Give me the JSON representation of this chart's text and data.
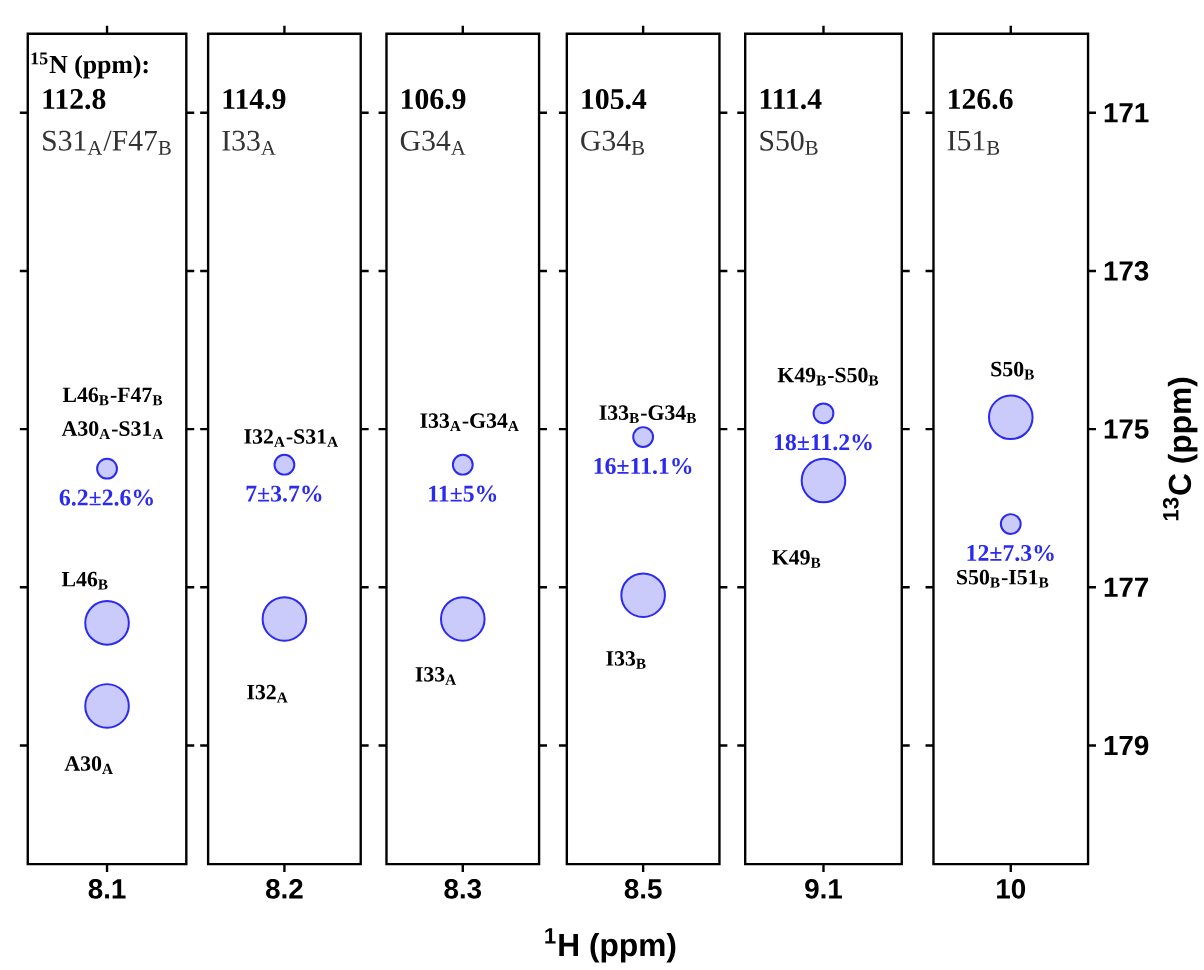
{
  "chart_data": [
    {
      "type": "scatter",
      "title": "112.8",
      "subtitle": "S31$_{A}$/F47$_{B}$",
      "categories": [
        "8.1"
      ],
      "ylim": [
        180.5,
        170
      ],
      "yticks": [
        171,
        173,
        175,
        177,
        179
      ],
      "tick_labels": "x",
      "marker": "circle",
      "series": [
        {
          "color": "#2b2bf0",
          "x": [
            "8.1",
            "8.1"
          ],
          "values": [
            177.45,
            178.5
          ]
        },
        {
          "color": "#2b2bf0",
          "x": [
            "8.1"
          ],
          "values": [
            175.5
          ],
          "value_labels": [
            "6.2±2.6%"
          ]
        }
      ],
      "annotations": [
        "$^{15}$N (ppm):",
        "L46$_{B}$-F47$_{B}$",
        "A30$_{A}$-S31$_{A}$",
        "L46$_{B}$",
        "A30$_{A}$"
      ]
    },
    {
      "type": "scatter",
      "title": "114.9",
      "subtitle": "I33$_{A}$",
      "categories": [
        "8.2"
      ],
      "ylim": [
        180.5,
        170
      ],
      "yticks": [
        171,
        173,
        175,
        177,
        179
      ],
      "tick_labels": "x",
      "marker": "circle",
      "series": [
        {
          "color": "#2b2bf0",
          "x": [
            "8.2"
          ],
          "values": [
            177.4
          ]
        },
        {
          "color": "#2b2bf0",
          "x": [
            "8.2"
          ],
          "values": [
            175.45
          ],
          "value_labels": [
            "7±3.7%"
          ]
        }
      ],
      "annotations": [
        "I32$_{A}$-S31$_{A}$",
        "I32$_{A}$"
      ]
    },
    {
      "type": "scatter",
      "title": "106.9",
      "subtitle": "G34$_{A}$",
      "categories": [
        "8.3"
      ],
      "ylim": [
        180.5,
        170
      ],
      "yticks": [
        171,
        173,
        175,
        177,
        179
      ],
      "tick_labels": "x",
      "marker": "circle",
      "series": [
        {
          "color": "#2b2bf0",
          "x": [
            "8.3"
          ],
          "values": [
            177.4
          ]
        },
        {
          "color": "#2b2bf0",
          "x": [
            "8.3"
          ],
          "values": [
            175.45
          ],
          "value_labels": [
            "11±5%"
          ]
        }
      ],
      "annotations": [
        "I33$_{A}$-G34$_{A}$",
        "I33$_{A}$"
      ]
    },
    {
      "type": "scatter",
      "title": "105.4",
      "subtitle": "G34$_{B}$",
      "xlabel": "$^{1}$H  (ppm)",
      "categories": [
        "8.5"
      ],
      "ylim": [
        180.5,
        170
      ],
      "yticks": [
        171,
        173,
        175,
        177,
        179
      ],
      "tick_labels": "x",
      "marker": "circle",
      "series": [
        {
          "color": "#2b2bf0",
          "x": [
            "8.5"
          ],
          "values": [
            177.1
          ]
        },
        {
          "color": "#2b2bf0",
          "x": [
            "8.5"
          ],
          "values": [
            175.1
          ],
          "value_labels": [
            "16±11.1%"
          ]
        }
      ],
      "annotations": [
        "I33$_{B}$-G34$_{B}$",
        "I33$_{B}$"
      ]
    },
    {
      "type": "scatter",
      "title": "111.4",
      "subtitle": "S50$_{B}$",
      "categories": [
        "9.1"
      ],
      "ylim": [
        180.5,
        170
      ],
      "yticks": [
        171,
        173,
        175,
        177,
        179
      ],
      "tick_labels": "x",
      "marker": "circle",
      "series": [
        {
          "color": "#2b2bf0",
          "x": [
            "9.1"
          ],
          "values": [
            175.65
          ]
        },
        {
          "color": "#2b2bf0",
          "x": [
            "9.1"
          ],
          "values": [
            174.8
          ],
          "value_labels": [
            "18±11.2%"
          ]
        }
      ],
      "annotations": [
        "K49$_{B}$-S50$_{B}$",
        "K49$_{B}$"
      ]
    },
    {
      "type": "scatter",
      "title": "126.6",
      "subtitle": "I51$_{B}$",
      "ylabel": "$^{13}$C  (ppm)",
      "categories": [
        "10"
      ],
      "ylim": [
        180.5,
        170
      ],
      "yticks": [
        171,
        173,
        175,
        177,
        179
      ],
      "marker": "circle",
      "series": [
        {
          "color": "#2b2bf0",
          "x": [
            "10"
          ],
          "values": [
            174.85
          ]
        },
        {
          "color": "#2b2bf0",
          "x": [
            "10"
          ],
          "values": [
            176.2
          ],
          "value_labels": [
            "12±7.3%"
          ]
        }
      ],
      "annotations": [
        "S50$_{B}$",
        "S50$_{B}$-I51$_{B}$"
      ]
    }
  ]
}
